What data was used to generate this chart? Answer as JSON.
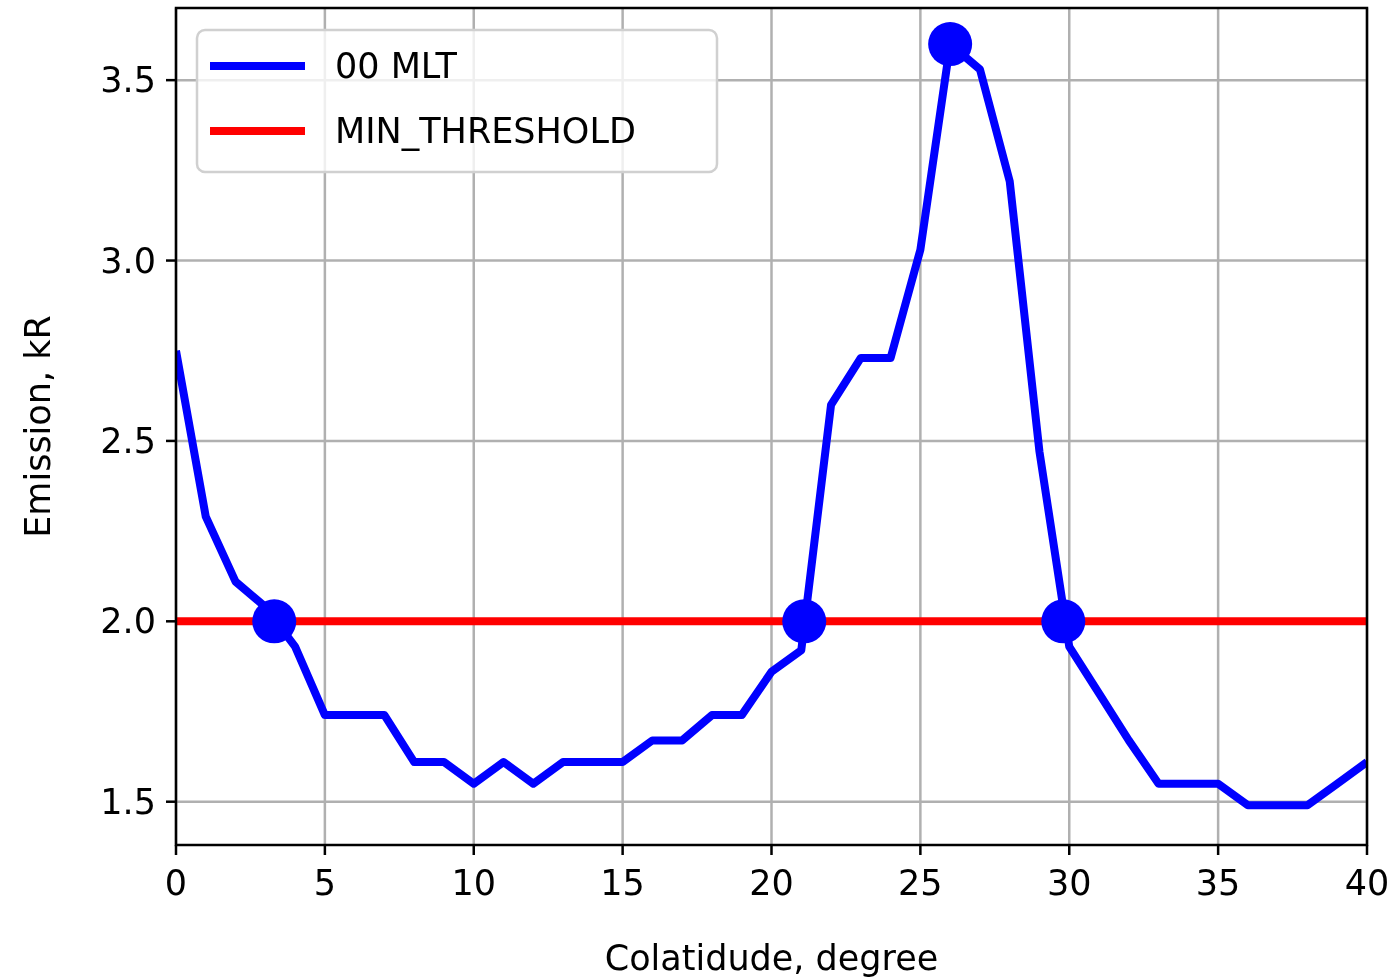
{
  "chart_data": {
    "type": "line",
    "xlabel": "Colatidude, degree",
    "ylabel": "Emission, kR",
    "xlim": [
      0,
      40
    ],
    "ylim": [
      1.38,
      3.7
    ],
    "xticks": [
      0,
      5,
      10,
      15,
      20,
      25,
      30,
      35,
      40
    ],
    "yticks": [
      {
        "value": 1.5,
        "label": "1.5"
      },
      {
        "value": 2,
        "label": "2.0"
      },
      {
        "value": 2.5,
        "label": "2.5"
      },
      {
        "value": 3,
        "label": "3.0"
      },
      {
        "value": 3.5,
        "label": "3.5"
      }
    ],
    "grid": true,
    "legend": "top left",
    "series": [
      {
        "name": "00 MLT",
        "color": "#0000ff",
        "x": [
          0,
          1,
          2,
          3,
          4,
          5,
          6,
          7,
          8,
          9,
          10,
          11,
          12,
          13,
          14,
          15,
          16,
          17,
          18,
          19,
          20,
          21,
          22,
          23,
          24,
          25,
          26,
          27,
          28,
          29,
          30,
          31,
          32,
          33,
          34,
          35,
          36,
          37,
          38,
          39,
          40
        ],
        "values": [
          2.75,
          2.29,
          2.11,
          2.04,
          1.93,
          1.74,
          1.74,
          1.74,
          1.61,
          1.61,
          1.55,
          1.61,
          1.55,
          1.61,
          1.61,
          1.61,
          1.67,
          1.67,
          1.74,
          1.74,
          1.86,
          1.92,
          2.6,
          2.73,
          2.73,
          3.03,
          3.6,
          3.53,
          3.22,
          2.47,
          1.93,
          1.8,
          1.67,
          1.55,
          1.55,
          1.55,
          1.49,
          1.49,
          1.49,
          1.55,
          1.61
        ]
      },
      {
        "color": "#0000ff",
        "type": "scatter",
        "marker": "circle",
        "x": [
          3.3,
          21.1,
          26,
          29.8
        ],
        "values": [
          2.0,
          2.0,
          3.6,
          2.0
        ]
      }
    ],
    "ref_lines": [
      {
        "axis": "y",
        "value": 2.0,
        "label": "MIN_THRESHOLD",
        "color": "#ff0000"
      }
    ]
  }
}
